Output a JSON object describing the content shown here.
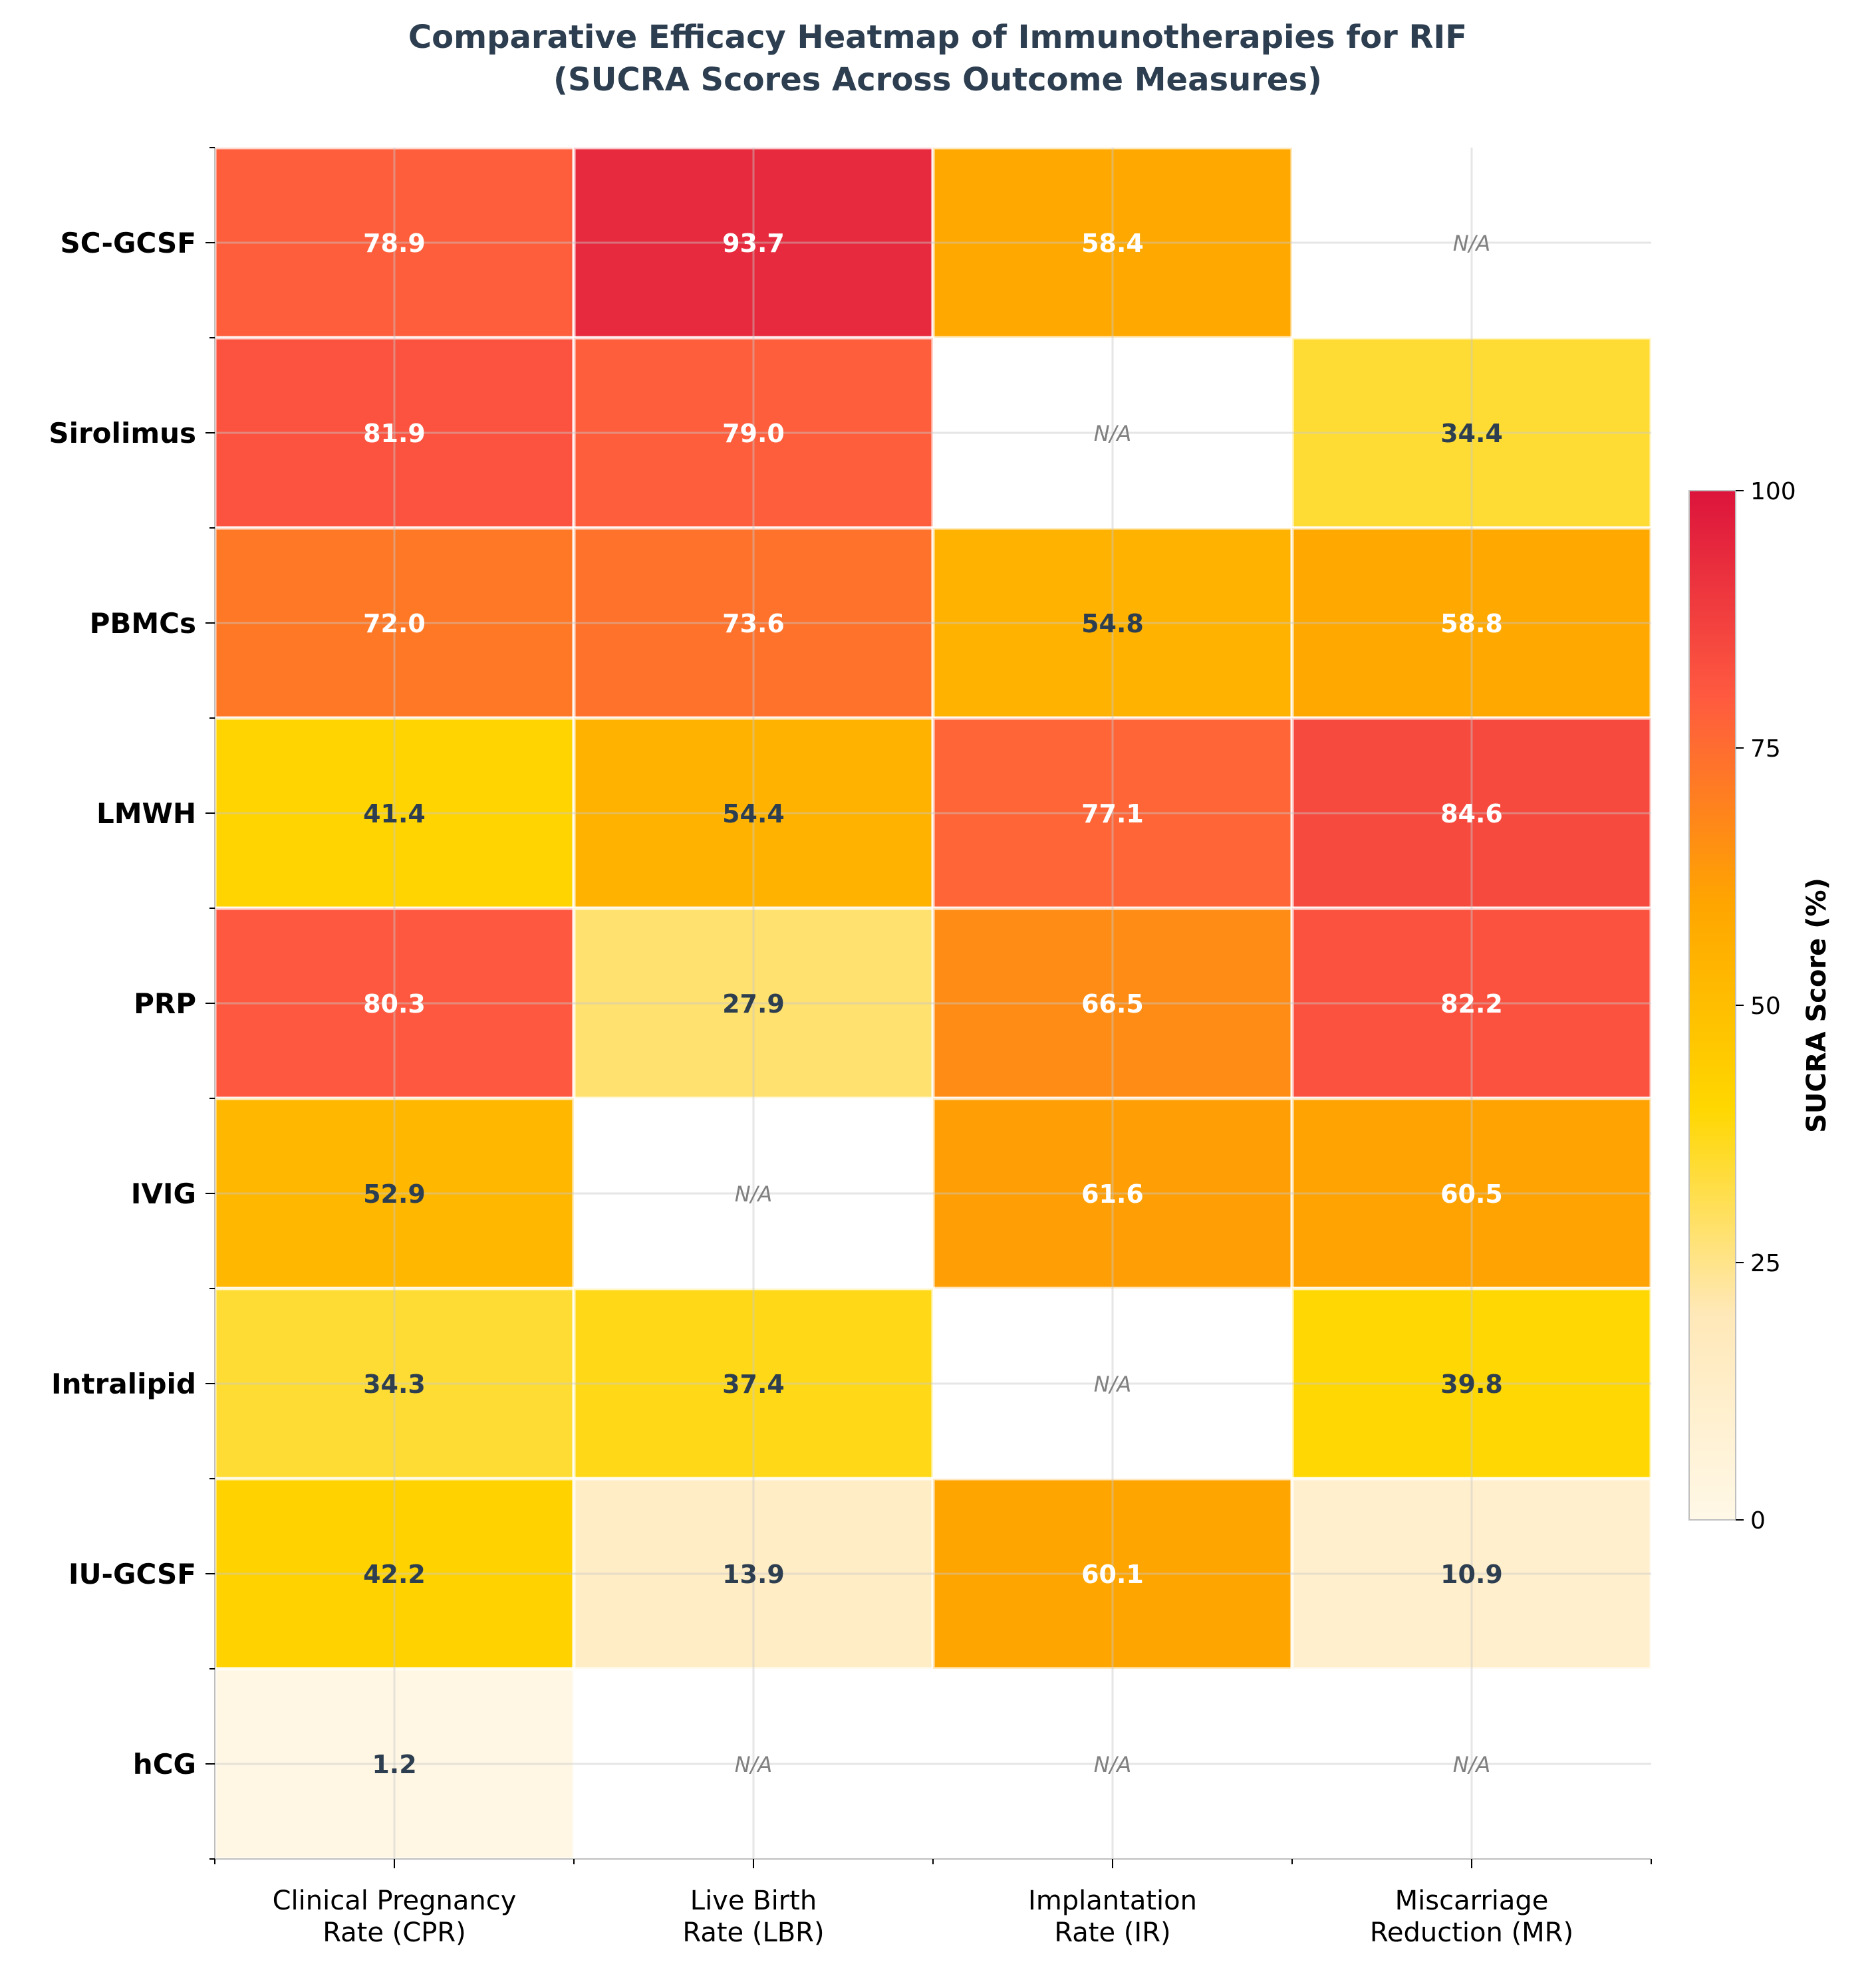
{
  "chart_data": {
    "type": "heatmap",
    "title_lines": [
      "Comparative Efficacy Heatmap of Immunotherapies for RIF",
      "(SUCRA Scores Across Outcome Measures)"
    ],
    "rows": [
      "SC-GCSF",
      "Sirolimus",
      "PBMCs",
      "LMWH",
      "PRP",
      "IVIG",
      "Intralipid",
      "IU-GCSF",
      "hCG"
    ],
    "columns": [
      [
        "Clinical Pregnancy",
        "Rate (CPR)"
      ],
      [
        "Live Birth",
        "Rate (LBR)"
      ],
      [
        "Implantation",
        "Rate (IR)"
      ],
      [
        "Miscarriage",
        "Reduction (MR)"
      ]
    ],
    "values": [
      [
        78.9,
        93.7,
        58.4,
        null
      ],
      [
        81.9,
        79.0,
        null,
        34.4
      ],
      [
        72.0,
        73.6,
        54.8,
        58.8
      ],
      [
        41.4,
        54.4,
        77.1,
        84.6
      ],
      [
        80.3,
        27.9,
        66.5,
        82.2
      ],
      [
        52.9,
        null,
        61.6,
        60.5
      ],
      [
        34.3,
        37.4,
        null,
        39.8
      ],
      [
        42.2,
        13.9,
        60.1,
        10.9
      ],
      [
        1.2,
        null,
        null,
        null
      ]
    ],
    "missing_label": "N/A",
    "colorbar": {
      "label": "SUCRA Score (%)",
      "range": [
        0,
        100
      ],
      "ticks": [
        0,
        25,
        50,
        75,
        100
      ],
      "colormap": [
        [
          0,
          "#fff8e7"
        ],
        [
          20,
          "#ffe8b8"
        ],
        [
          40,
          "#ffd700"
        ],
        [
          60,
          "#ffa500"
        ],
        [
          80,
          "#ff5a40"
        ],
        [
          100,
          "#dc143c"
        ]
      ]
    },
    "text_colors": {
      "dark": "#2c3e50",
      "light": "#ffffff"
    },
    "light_text_threshold": 55
  }
}
